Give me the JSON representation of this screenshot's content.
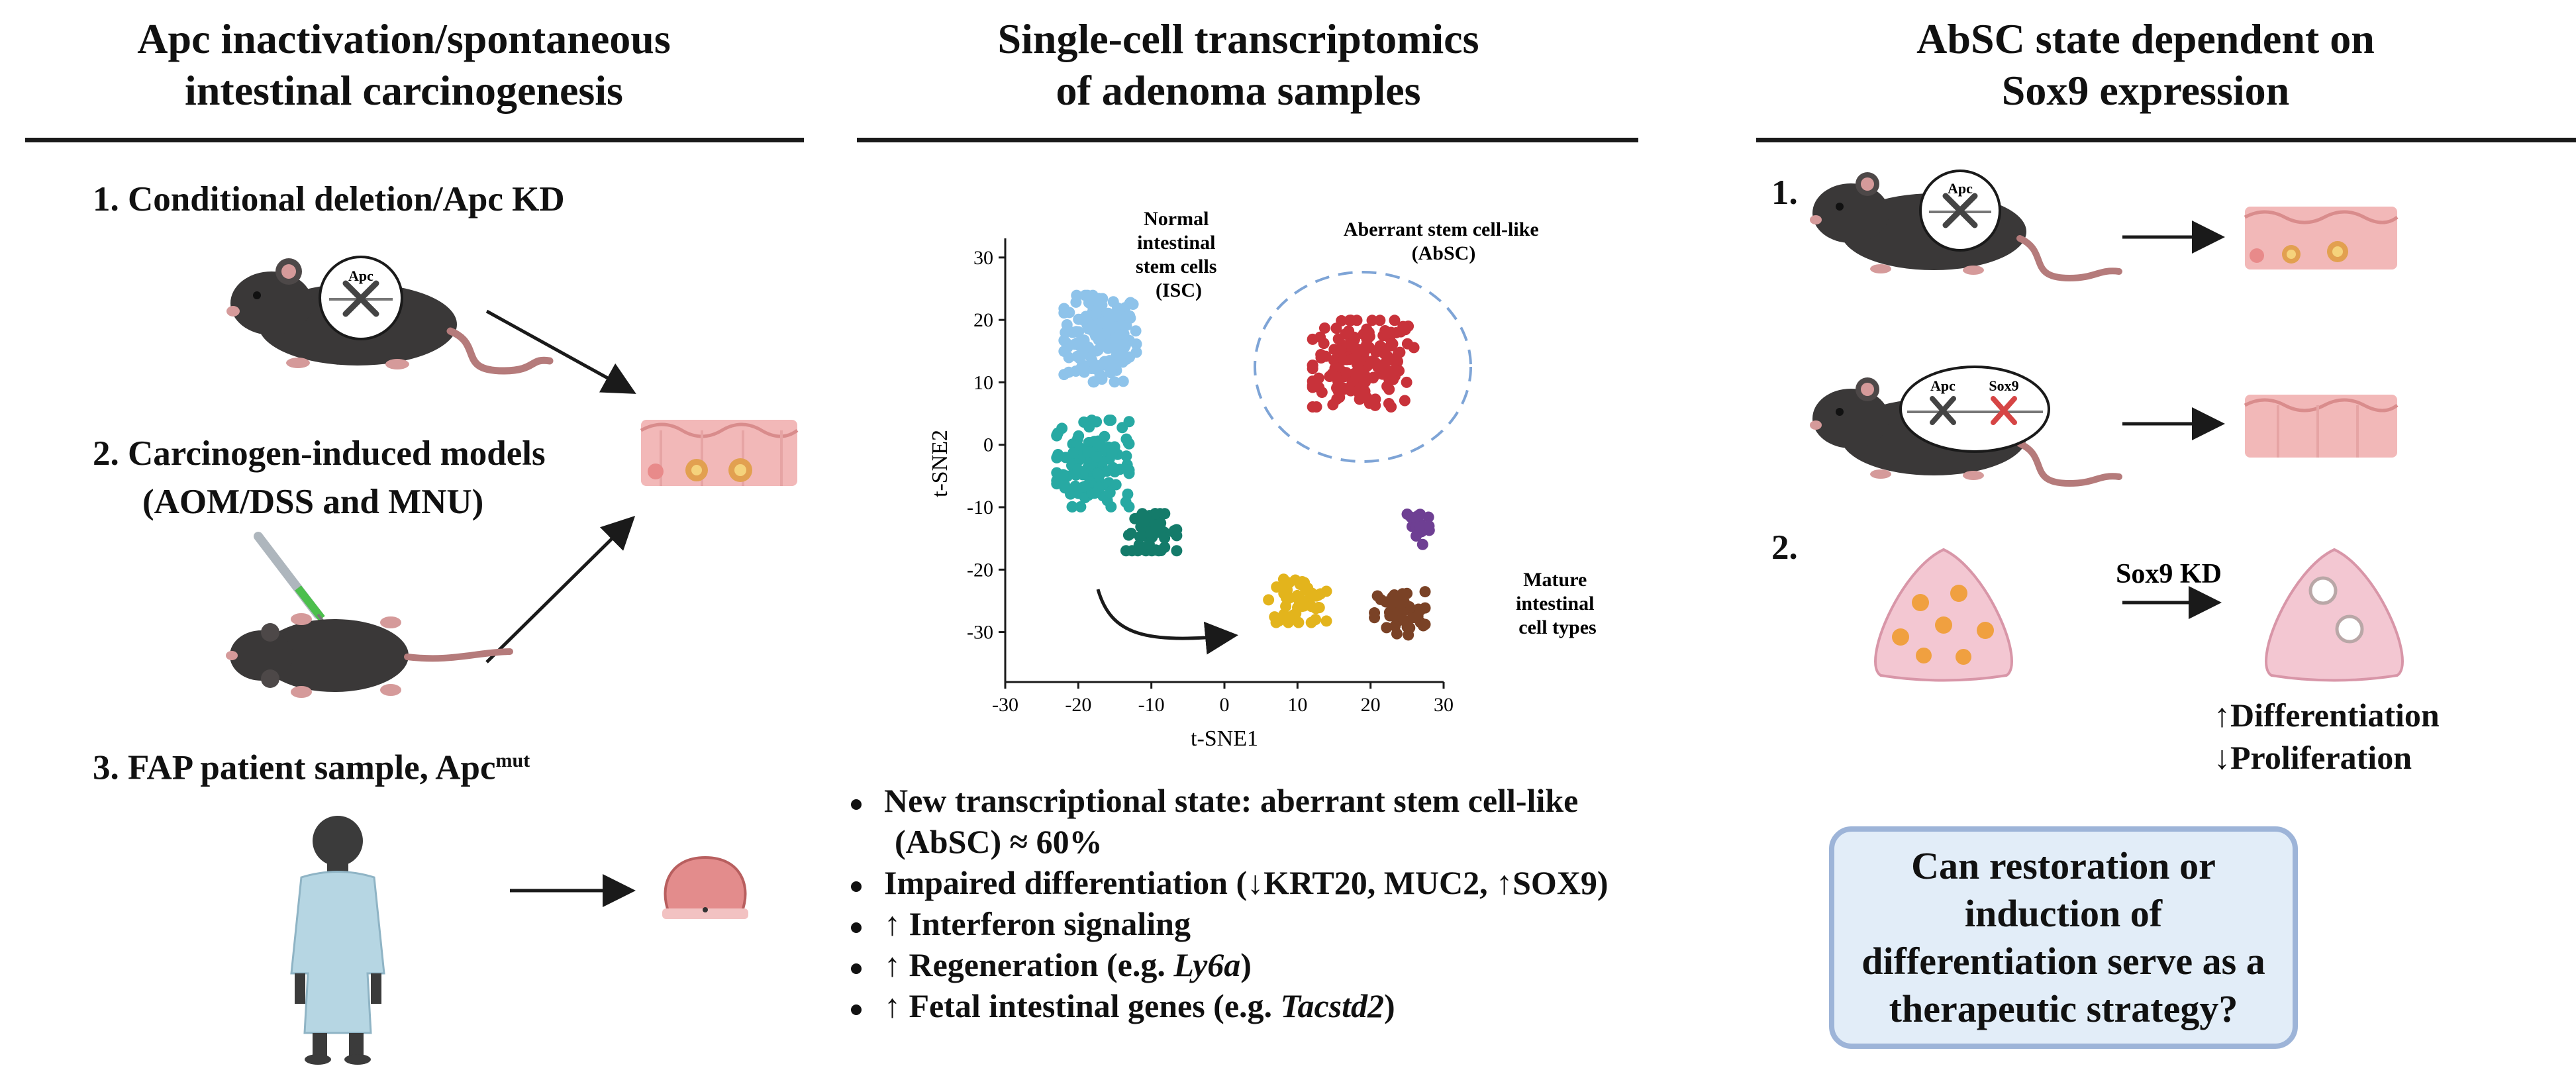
{
  "panels": {
    "left": {
      "title_line1": "Apc inactivation/spontaneous",
      "title_line2": "intestinal carcinogenesis",
      "step1": "1.  Conditional deletion/Apc KD",
      "step2_line1": "2.  Carcinogen-induced models",
      "step2_line2": "(AOM/DSS and MNU)",
      "step3": "3.  FAP patient sample, Apc",
      "step3_sup": "mut",
      "gene_label": "Apc"
    },
    "middle": {
      "title_line1": "Single-cell transcriptomics",
      "title_line2": "of adenoma samples",
      "bullets": [
        {
          "pre": "New transcriptional state: aberrant stem cell-like",
          "em": "",
          "post": ""
        },
        {
          "pre": "(AbSC) ≈ 60%",
          "em": "",
          "post": ""
        },
        {
          "pre": "Impaired differentiation (↓KRT20, MUC2, ↑SOX9)",
          "em": "",
          "post": ""
        },
        {
          "pre": "↑ Interferon signaling",
          "em": "",
          "post": ""
        },
        {
          "pre": "↑ Regeneration (e.g. ",
          "em": "Ly6a",
          "post": ")"
        },
        {
          "pre": "↑ Fetal intestinal genes (e.g. ",
          "em": "Tacstd2",
          "post": ")"
        }
      ]
    },
    "right": {
      "title_line1": "AbSC state dependent on",
      "title_line2": "Sox9 expression",
      "step1": "1.",
      "step2": "2.",
      "gene_apc": "Apc",
      "gene_sox9": "Sox9",
      "treatment": "Sox9 KD",
      "effect1": "↑Differentiation",
      "effect2": "↓Proliferation",
      "question": "Can restoration or induction of differentiation serve as a therapeutic strategy?"
    }
  },
  "chart_data": {
    "type": "scatter",
    "xlabel": "t-SNE1",
    "ylabel": "t-SNE2",
    "xlim": [
      -30,
      30
    ],
    "ylim": [
      -38,
      32
    ],
    "xticks": [
      -30,
      -20,
      -10,
      0,
      10,
      20,
      30
    ],
    "yticks": [
      30,
      20,
      10,
      0,
      -10,
      -20,
      -30
    ],
    "annotations": {
      "isc_line1": "Normal",
      "isc_line2": "intestinal",
      "isc_line3": "stem cells",
      "isc_line4": "(ISC)",
      "absc_line1": "Aberrant stem cell-like",
      "absc_line2": "(AbSC)",
      "mature_line1": "Mature",
      "mature_line2": "intestinal",
      "mature_line3": "cell types"
    },
    "clusters": [
      {
        "name": "ISC",
        "color": "#8ec3ea",
        "center": [
          -17,
          17
        ],
        "spread": [
          5,
          7
        ],
        "count": 150
      },
      {
        "name": "ISC-transit",
        "color": "#27a9a3",
        "center": [
          -18,
          -3
        ],
        "spread": [
          5,
          7
        ],
        "count": 130
      },
      {
        "name": "ISC-progenitor",
        "color": "#147b6a",
        "center": [
          -10,
          -14
        ],
        "spread": [
          3.5,
          3
        ],
        "count": 50
      },
      {
        "name": "AbSC",
        "color": "#c8323a",
        "center": [
          19,
          13
        ],
        "spread": [
          7,
          7
        ],
        "count": 170
      },
      {
        "name": "Mature-yellow",
        "color": "#e3b41c",
        "center": [
          10,
          -25
        ],
        "spread": [
          4,
          3.5
        ],
        "count": 55
      },
      {
        "name": "Mature-brown",
        "color": "#7a4226",
        "center": [
          24,
          -27
        ],
        "spread": [
          3.5,
          3.5
        ],
        "count": 45
      },
      {
        "name": "Mature-purple",
        "color": "#6e3f93",
        "center": [
          26.5,
          -13
        ],
        "spread": [
          1.6,
          3
        ],
        "count": 25
      }
    ]
  }
}
